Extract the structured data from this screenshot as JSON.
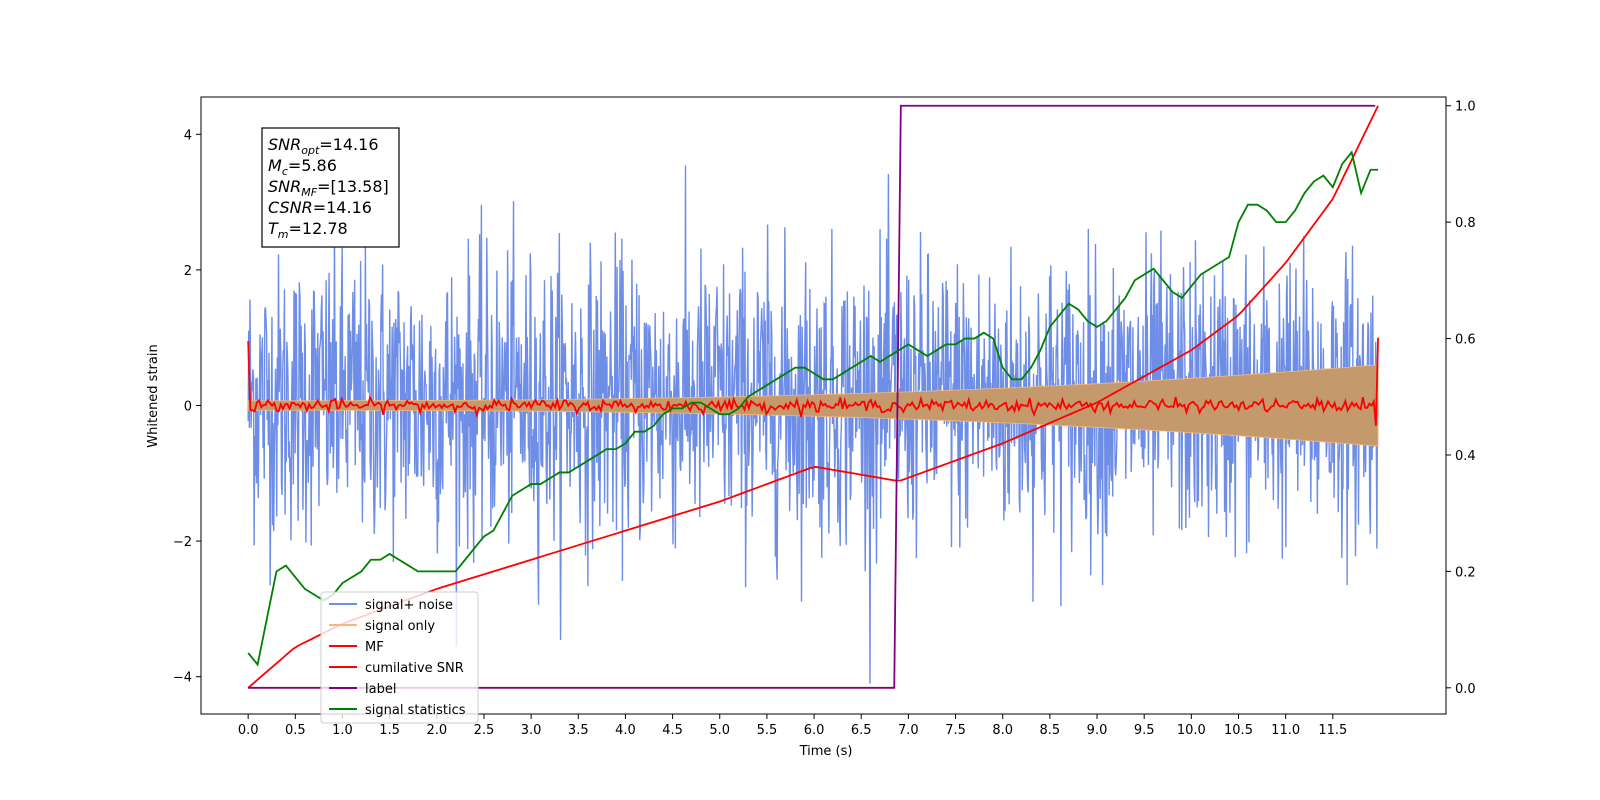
{
  "chart_data": {
    "type": "line",
    "xlabel": "Time (s)",
    "ylabel": "Whitened strain",
    "xlim": [
      -0.5,
      12.7
    ],
    "ylim": [
      -4.55,
      4.55
    ],
    "y2lim": [
      -0.045,
      1.015
    ],
    "x_ticks": [
      "0.0",
      "0.5",
      "1.0",
      "1.5",
      "2.0",
      "2.5",
      "3.0",
      "3.5",
      "4.0",
      "4.5",
      "5.0",
      "5.5",
      "6.0",
      "6.5",
      "7.0",
      "7.5",
      "8.0",
      "8.5",
      "9.0",
      "9.5",
      "10.0",
      "10.5",
      "11.0",
      "11.5"
    ],
    "y_ticks": [
      "4",
      "2",
      "0",
      "−2",
      "−4"
    ],
    "y2_ticks": [
      "1.0",
      "0.8",
      "0.6",
      "0.4",
      "0.2",
      "0.0"
    ],
    "legend_placement": "lower-left",
    "annotation": {
      "snr_opt": {
        "base": "SNR",
        "sub": "opt",
        "value": "=14.16"
      },
      "mc": {
        "base": "M",
        "sub": "c",
        "value": "=5.86"
      },
      "snr_mf": {
        "base": "SNR",
        "sub": "MF",
        "value": "=[13.58]"
      },
      "csnr": {
        "base": "CSNR",
        "sub": "",
        "value": "=14.16"
      },
      "tm": {
        "base": "T",
        "sub": "m",
        "value": "=12.78"
      }
    },
    "series": [
      {
        "name": "signal+ noise",
        "color": "#6d8de6",
        "axis": "left",
        "style": "noise",
        "std": 1.05,
        "clip": [
          -4.1,
          4.1
        ],
        "x_range": [
          0.0,
          11.98
        ]
      },
      {
        "name": "signal only",
        "color": "#f5b87a",
        "axis": "left",
        "style": "chirp_envelope",
        "x_range": [
          0.0,
          11.98
        ],
        "amplitude_start": 0.07,
        "amplitude_end": 0.6,
        "fill_color": "#c49a6c"
      },
      {
        "name": "MF",
        "color": "#ff0000",
        "axis": "left",
        "style": "mf",
        "x_range": [
          0.0,
          11.98
        ],
        "start_value": 0.95,
        "end_value": 1.0
      },
      {
        "name": "cumilative SNR",
        "color": "#ff0000",
        "axis": "right",
        "x": [
          0.0,
          0.5,
          1.0,
          2.0,
          3.0,
          4.0,
          5.0,
          6.0,
          6.9,
          8.0,
          9.0,
          10.0,
          10.5,
          11.0,
          11.5,
          11.98
        ],
        "y": [
          0.0,
          0.07,
          0.11,
          0.17,
          0.22,
          0.27,
          0.32,
          0.38,
          0.355,
          0.42,
          0.49,
          0.58,
          0.64,
          0.73,
          0.84,
          1.0
        ]
      },
      {
        "name": "label",
        "color": "#800080",
        "axis": "right",
        "x": [
          0.0,
          6.85,
          6.92,
          11.95
        ],
        "y": [
          0.0,
          0.0,
          1.0,
          1.0
        ]
      },
      {
        "name": "signal statistics",
        "color": "#008000",
        "axis": "right",
        "x": [
          0.0,
          0.1,
          0.2,
          0.3,
          0.4,
          0.5,
          0.6,
          0.7,
          0.8,
          0.9,
          1.0,
          1.1,
          1.2,
          1.3,
          1.4,
          1.5,
          1.6,
          1.7,
          1.8,
          1.9,
          2.0,
          2.1,
          2.2,
          2.3,
          2.4,
          2.5,
          2.6,
          2.7,
          2.8,
          2.9,
          3.0,
          3.1,
          3.2,
          3.3,
          3.4,
          3.5,
          3.6,
          3.7,
          3.8,
          3.9,
          4.0,
          4.1,
          4.2,
          4.3,
          4.4,
          4.5,
          4.6,
          4.7,
          4.8,
          4.9,
          5.0,
          5.1,
          5.2,
          5.3,
          5.4,
          5.5,
          5.6,
          5.7,
          5.8,
          5.9,
          6.0,
          6.1,
          6.2,
          6.3,
          6.4,
          6.5,
          6.6,
          6.7,
          6.8,
          6.9,
          7.0,
          7.1,
          7.2,
          7.3,
          7.4,
          7.5,
          7.6,
          7.7,
          7.8,
          7.9,
          8.0,
          8.1,
          8.2,
          8.3,
          8.4,
          8.5,
          8.6,
          8.7,
          8.8,
          8.9,
          9.0,
          9.1,
          9.2,
          9.3,
          9.4,
          9.5,
          9.6,
          9.7,
          9.8,
          9.9,
          10.0,
          10.1,
          10.2,
          10.3,
          10.4,
          10.5,
          10.6,
          10.7,
          10.8,
          10.9,
          11.0,
          11.1,
          11.2,
          11.3,
          11.4,
          11.5,
          11.6,
          11.7,
          11.8,
          11.9,
          11.98
        ],
        "y": [
          0.06,
          0.04,
          0.12,
          0.2,
          0.21,
          0.19,
          0.17,
          0.16,
          0.15,
          0.16,
          0.18,
          0.19,
          0.2,
          0.22,
          0.22,
          0.23,
          0.22,
          0.21,
          0.2,
          0.2,
          0.2,
          0.2,
          0.2,
          0.22,
          0.24,
          0.26,
          0.27,
          0.3,
          0.33,
          0.34,
          0.35,
          0.35,
          0.36,
          0.37,
          0.37,
          0.38,
          0.39,
          0.4,
          0.41,
          0.41,
          0.42,
          0.44,
          0.44,
          0.45,
          0.47,
          0.48,
          0.48,
          0.49,
          0.49,
          0.48,
          0.47,
          0.47,
          0.48,
          0.5,
          0.51,
          0.52,
          0.53,
          0.54,
          0.55,
          0.55,
          0.54,
          0.53,
          0.53,
          0.54,
          0.55,
          0.56,
          0.57,
          0.56,
          0.57,
          0.58,
          0.59,
          0.58,
          0.57,
          0.58,
          0.59,
          0.59,
          0.6,
          0.6,
          0.61,
          0.6,
          0.55,
          0.53,
          0.53,
          0.55,
          0.58,
          0.62,
          0.64,
          0.66,
          0.65,
          0.63,
          0.62,
          0.63,
          0.65,
          0.67,
          0.7,
          0.71,
          0.72,
          0.7,
          0.68,
          0.67,
          0.69,
          0.71,
          0.72,
          0.73,
          0.74,
          0.8,
          0.83,
          0.83,
          0.82,
          0.8,
          0.8,
          0.82,
          0.85,
          0.87,
          0.88,
          0.86,
          0.9,
          0.92,
          0.85,
          0.89,
          0.89
        ]
      }
    ]
  }
}
